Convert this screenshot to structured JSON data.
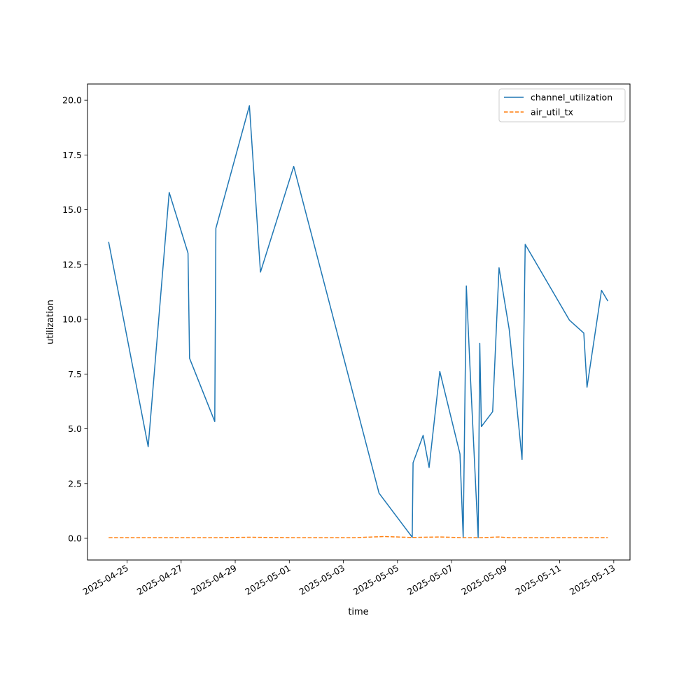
{
  "chart_data": {
    "type": "line",
    "title": "",
    "xlabel": "time",
    "ylabel": "utilization",
    "xlim": [
      "2025-04-23T12:53",
      "2025-05-13T14:24"
    ],
    "ylim": [
      -0.99,
      20.74
    ],
    "x_ticks": [
      "2025-04-25",
      "2025-04-27",
      "2025-04-29",
      "2025-05-01",
      "2025-05-03",
      "2025-05-05",
      "2025-05-07",
      "2025-05-09",
      "2025-05-11",
      "2025-05-13"
    ],
    "y_ticks": [
      0.0,
      2.5,
      5.0,
      7.5,
      10.0,
      12.5,
      15.0,
      17.5,
      20.0
    ],
    "y_tick_labels": [
      "0.0",
      "2.5",
      "5.0",
      "7.5",
      "10.0",
      "12.5",
      "15.0",
      "17.5",
      "20.0"
    ],
    "grid": false,
    "legend_position": "upper right",
    "series": [
      {
        "name": "channel_utilization",
        "color": "#1f77b4",
        "style": "solid",
        "points": [
          [
            "2025-04-24T07:40",
            13.53
          ],
          [
            "2025-04-25T18:45",
            4.18
          ],
          [
            "2025-04-26T13:25",
            15.79
          ],
          [
            "2025-04-27T06:05",
            13.02
          ],
          [
            "2025-04-27T07:30",
            8.22
          ],
          [
            "2025-04-28T05:50",
            5.33
          ],
          [
            "2025-04-28T06:50",
            14.15
          ],
          [
            "2025-04-29T12:35",
            19.75
          ],
          [
            "2025-04-29T22:25",
            12.15
          ],
          [
            "2025-05-01T03:55",
            16.98
          ],
          [
            "2025-05-04T07:40",
            2.06
          ],
          [
            "2025-05-05T13:05",
            0.05
          ],
          [
            "2025-05-05T13:50",
            3.45
          ],
          [
            "2025-05-05T22:50",
            4.7
          ],
          [
            "2025-05-06T04:05",
            3.23
          ],
          [
            "2025-05-06T13:35",
            7.62
          ],
          [
            "2025-05-07T07:30",
            3.85
          ],
          [
            "2025-05-07T10:20",
            0.03
          ],
          [
            "2025-05-07T13:10",
            11.52
          ],
          [
            "2025-05-07T16:35",
            7.6
          ],
          [
            "2025-05-07T23:40",
            0.03
          ],
          [
            "2025-05-08T01:05",
            8.9
          ],
          [
            "2025-05-08T02:30",
            5.1
          ],
          [
            "2025-05-08T12:30",
            5.78
          ],
          [
            "2025-05-08T18:10",
            12.35
          ],
          [
            "2025-05-09T03:10",
            9.55
          ],
          [
            "2025-05-09T14:35",
            3.6
          ],
          [
            "2025-05-09T17:25",
            13.42
          ],
          [
            "2025-05-11T08:35",
            9.96
          ],
          [
            "2025-05-11T21:25",
            9.37
          ],
          [
            "2025-05-12T00:15",
            6.9
          ],
          [
            "2025-05-12T13:05",
            11.32
          ],
          [
            "2025-05-12T18:45",
            10.83
          ]
        ]
      },
      {
        "name": "air_util_tx",
        "color": "#ff7f0e",
        "style": "dashed",
        "points": [
          [
            "2025-04-24T07:40",
            0.03
          ],
          [
            "2025-04-25T18:45",
            0.03
          ],
          [
            "2025-04-27T07:30",
            0.03
          ],
          [
            "2025-04-28T06:50",
            0.03
          ],
          [
            "2025-04-29T12:35",
            0.05
          ],
          [
            "2025-05-01T03:55",
            0.03
          ],
          [
            "2025-05-03T09:00",
            0.03
          ],
          [
            "2025-05-04T07:40",
            0.07
          ],
          [
            "2025-05-04T12:00",
            0.08
          ],
          [
            "2025-05-05T13:05",
            0.04
          ],
          [
            "2025-05-06T13:35",
            0.06
          ],
          [
            "2025-05-07T10:20",
            0.03
          ],
          [
            "2025-05-08T02:30",
            0.03
          ],
          [
            "2025-05-08T18:10",
            0.06
          ],
          [
            "2025-05-09T03:10",
            0.03
          ],
          [
            "2025-05-11T08:35",
            0.03
          ],
          [
            "2025-05-12T18:45",
            0.03
          ]
        ]
      }
    ]
  }
}
